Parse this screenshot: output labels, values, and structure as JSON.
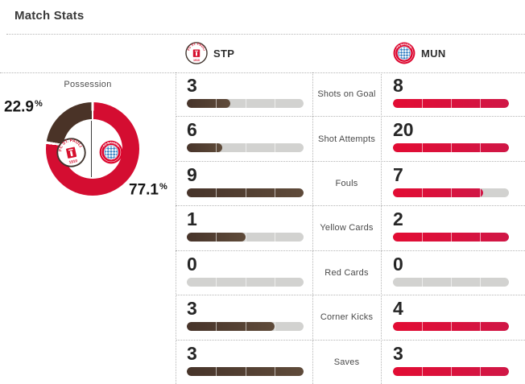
{
  "page": {
    "title": "Match Stats"
  },
  "header": {
    "home_abbr": "STP",
    "away_abbr": "MUN",
    "home_crest_icon": "stp-crest-icon",
    "away_crest_icon": "mun-crest-icon"
  },
  "possession": {
    "label": "Possession",
    "home_value": "22.9",
    "away_value": "77.1",
    "percent_sign": "%"
  },
  "stats": [
    {
      "label": "Shots on Goal",
      "home": 3,
      "away": 8
    },
    {
      "label": "Shot Attempts",
      "home": 6,
      "away": 20
    },
    {
      "label": "Fouls",
      "home": 9,
      "away": 7
    },
    {
      "label": "Yellow Cards",
      "home": 1,
      "away": 2
    },
    {
      "label": "Red Cards",
      "home": 0,
      "away": 0
    },
    {
      "label": "Corner Kicks",
      "home": 3,
      "away": 4
    },
    {
      "label": "Saves",
      "home": 3,
      "away": 3
    }
  ],
  "crest_text": {
    "stp_top": "FC ST. PAULI",
    "stp_bottom": "1910",
    "mun_top": "FC BAYERN",
    "mun_bottom": "MUNCHEN"
  },
  "colors": {
    "home_bar_start": "#47342a",
    "home_bar_end": "#5f4b3a",
    "away_bar_start": "#e20c33",
    "away_bar_end": "#d01746",
    "bar_track": "#d2d2d0",
    "donut_home": "#4a3327",
    "donut_away": "#d40d31",
    "divider_dots": "#b5b5b5",
    "value_text": "#262626",
    "label_text": "#4a4a4a"
  },
  "chart_data": [
    {
      "type": "pie",
      "style": "donut",
      "title": "Possession",
      "labels": [
        "STP",
        "MUN"
      ],
      "values": [
        22.9,
        77.1
      ],
      "unit": "%",
      "colors": [
        "#4a3327",
        "#d40d31"
      ],
      "annotations": [
        "22.9%",
        "77.1%"
      ]
    },
    {
      "type": "bar",
      "title": "Match Stats",
      "orientation": "horizontal",
      "categories": [
        "Shots on Goal",
        "Shot Attempts",
        "Fouls",
        "Yellow Cards",
        "Red Cards",
        "Corner Kicks",
        "Saves"
      ],
      "series": [
        {
          "name": "STP",
          "values": [
            3,
            6,
            9,
            1,
            0,
            3,
            3
          ],
          "color": "#4f3b2f"
        },
        {
          "name": "MUN",
          "values": [
            8,
            20,
            7,
            2,
            0,
            4,
            3
          ],
          "color": "#da1038"
        }
      ],
      "layout": "each pair of mirrored bars normalized to max(STP, MUN) of that row; 4-segment tick marks on tracks"
    }
  ]
}
